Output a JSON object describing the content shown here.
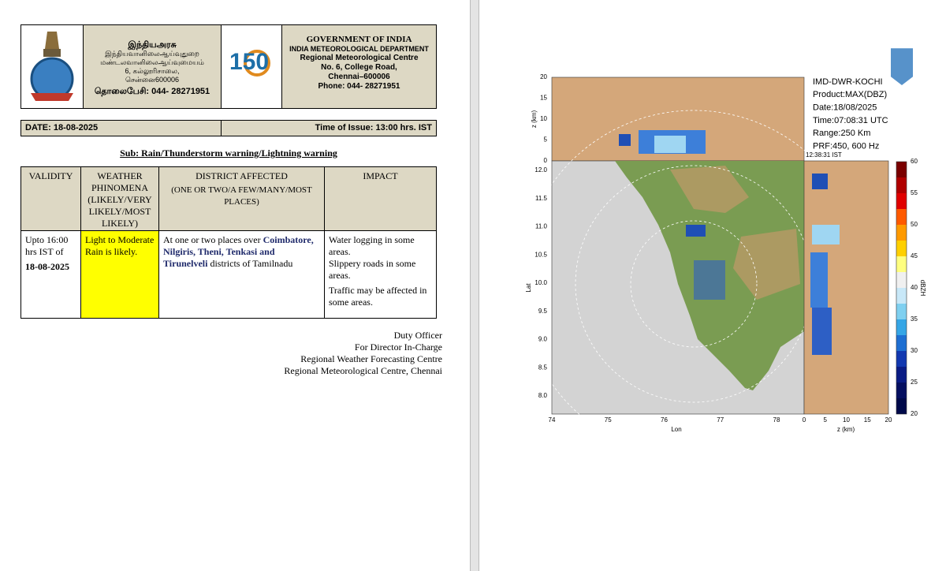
{
  "header": {
    "tamil": [
      "இந்தியஅரசு",
      "இந்தியவானிலைஆய்வுதுறை",
      "மண்டலவானிலைஆய்வுமையம்",
      "6, கல்லூரிசாலை,",
      "சென்னை600006",
      "தொலைபேசி: 044- 28271951"
    ],
    "english": [
      "GOVERNMENT OF INDIA",
      "INDIA METEOROLOGICAL DEPARTMENT",
      "Regional Meteorological Centre",
      "No. 6, College Road,",
      "Chennai–600006",
      "Phone:  044- 28271951"
    ],
    "logo_text": "150"
  },
  "date": "DATE: 18-08-2025",
  "time_of_issue": "Time of Issue: 13:00 hrs. IST",
  "subject": "Sub: Rain/Thunderstorm warning/Lightning warning",
  "table": {
    "headers": [
      [
        "VALIDITY"
      ],
      [
        "WEATHER PHINOMENA (LIKELY/VERY LIKELY/MOST LIKELY)"
      ],
      [
        "DISTRICT AFFECTED",
        "(ONE OR TWO/A FEW/MANY/MOST PLACES)"
      ],
      [
        "IMPACT"
      ]
    ],
    "rows": [
      [
        [
          "Upto 16:00 hrs IST of ",
          "18-08-2025"
        ],
        [
          "Light to Moderate Rain is likely."
        ],
        [
          "At one or two places over ",
          "Coimbatore, Nilgiris, Theni, Tenkasi and  Tirunelveli",
          " districts of Tamilnadu"
        ],
        [
          "Water logging in some areas.",
          "Slippery roads in some areas.",
          "Traffic may be affected in some areas."
        ]
      ]
    ]
  },
  "signature": [
    "Duty Officer",
    "For Director In-Charge",
    "Regional Weather Forecasting Centre",
    "Regional Meteorological Centre, Chennai"
  ],
  "radar": {
    "info": [
      "IMD-DWR-KOCHI",
      "Product:MAX(DBZ)",
      "Date:18/08/2025",
      "Time:07:08:31 UTC",
      "Range:250 Km",
      "PRF:450, 600 Hz"
    ],
    "ist_time": "12:38:31  IST",
    "top_zticks": [
      "20",
      "15",
      "10",
      "5",
      "0"
    ],
    "top_zlabel": "z (km)",
    "lat_ticks": [
      "12.0",
      "11.5",
      "11.0",
      "10.5",
      "10.0",
      "9.5",
      "9.0",
      "8.5",
      "8.0"
    ],
    "lat_label": "Lat",
    "lon_ticks": [
      "74",
      "75",
      "76",
      "77",
      "78"
    ],
    "lon_label": "Lon",
    "side_zticks": [
      "0",
      "5",
      "10",
      "15",
      "20"
    ],
    "side_zlabel": "z (km)",
    "colorbar_ticks": [
      "60",
      "55",
      "50",
      "45",
      "40",
      "35",
      "30",
      "25",
      "20"
    ],
    "colorbar_label": "dBZH"
  }
}
